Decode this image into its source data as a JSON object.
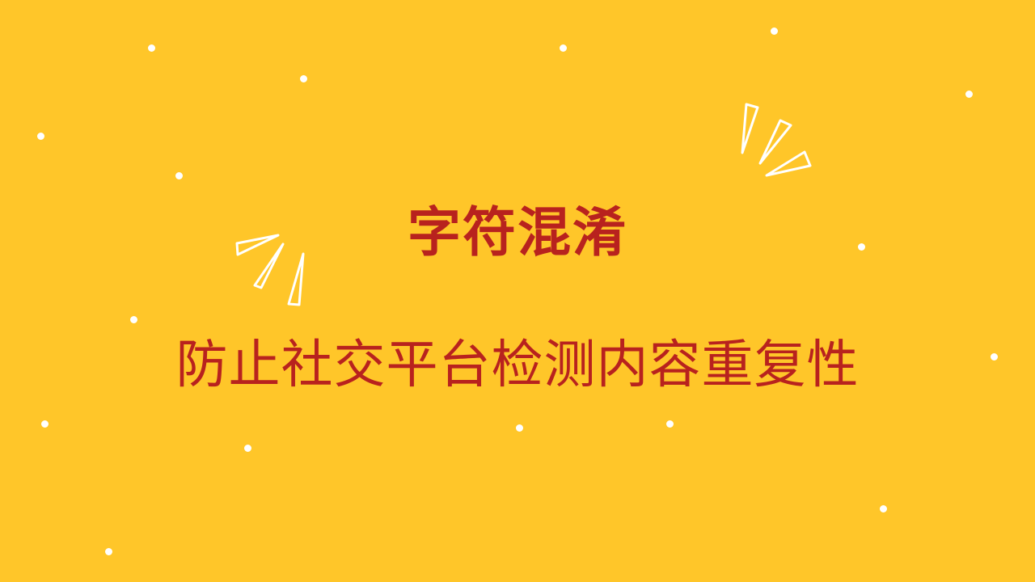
{
  "slide": {
    "title": "字符混淆",
    "subtitle": "防止社交平台检测内容重复性"
  },
  "colors": {
    "background": "#ffc629",
    "text": "#b8221e",
    "decoration": "#ffffff"
  },
  "decorations": {
    "left_burst": "sparkle-burst",
    "right_burst": "sparkle-burst",
    "scattered_dots": "dot"
  }
}
